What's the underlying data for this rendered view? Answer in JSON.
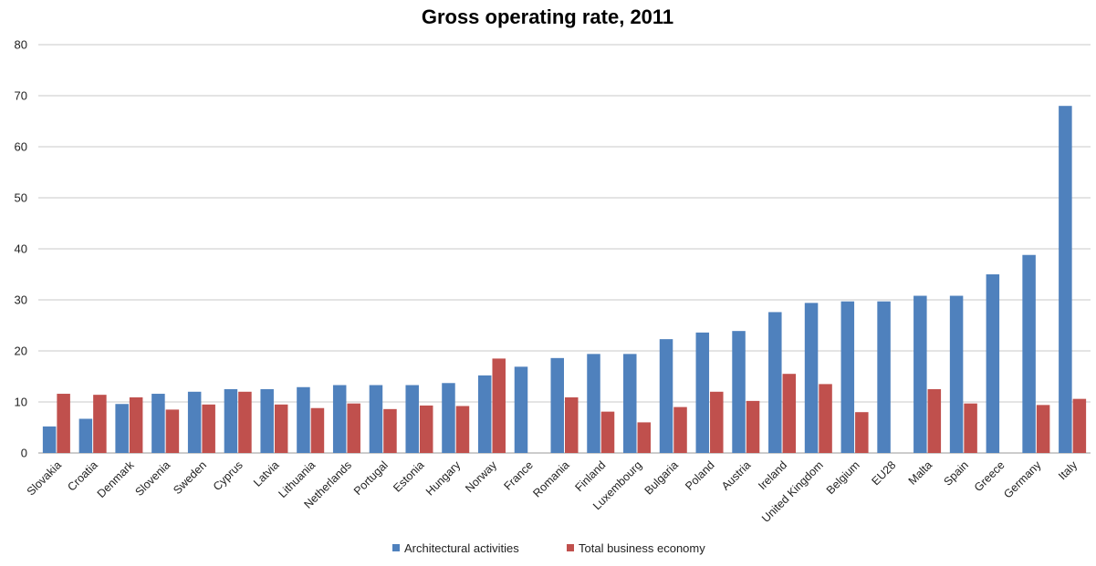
{
  "chart_data": {
    "type": "bar",
    "title": "Gross operating rate,  2011",
    "xlabel": "",
    "ylabel": "",
    "ylim": [
      0,
      80
    ],
    "yticks": [
      0,
      10,
      20,
      30,
      40,
      50,
      60,
      70,
      80
    ],
    "grid": true,
    "legend": "bottom",
    "categories": [
      "Slovakia",
      "Croatia",
      "Denmark",
      "Slovenia",
      "Sweden",
      "Cyprus",
      "Latvia",
      "Lithuania",
      "Netherlands",
      "Portugal",
      "Estonia",
      "Hungary",
      "Norway",
      "France",
      "Romania",
      "Finland",
      "Luxembourg",
      "Bulgaria",
      "Poland",
      "Austria",
      "Ireland",
      "United Kingdom",
      "Belgium",
      "EU28",
      "Malta",
      "Spain",
      "Greece",
      "Germany",
      "Italy"
    ],
    "series": [
      {
        "name": "Architectural activities",
        "color": "#4f81bd",
        "values": [
          5.2,
          6.7,
          9.6,
          11.6,
          12.0,
          12.5,
          12.5,
          12.9,
          13.3,
          13.3,
          13.3,
          13.7,
          15.2,
          16.9,
          18.6,
          19.4,
          19.4,
          22.3,
          23.6,
          23.9,
          27.6,
          29.4,
          29.7,
          29.7,
          30.8,
          30.8,
          35.0,
          38.8,
          68.0
        ]
      },
      {
        "name": "Total business economy",
        "color": "#c0504d",
        "values": [
          11.6,
          11.4,
          10.9,
          8.5,
          9.5,
          12.0,
          9.5,
          8.8,
          9.7,
          8.6,
          9.3,
          9.2,
          18.5,
          null,
          10.9,
          8.1,
          6.0,
          9.0,
          12.0,
          10.2,
          15.5,
          13.5,
          8.0,
          null,
          12.5,
          9.7,
          null,
          9.4,
          10.6
        ]
      }
    ]
  }
}
